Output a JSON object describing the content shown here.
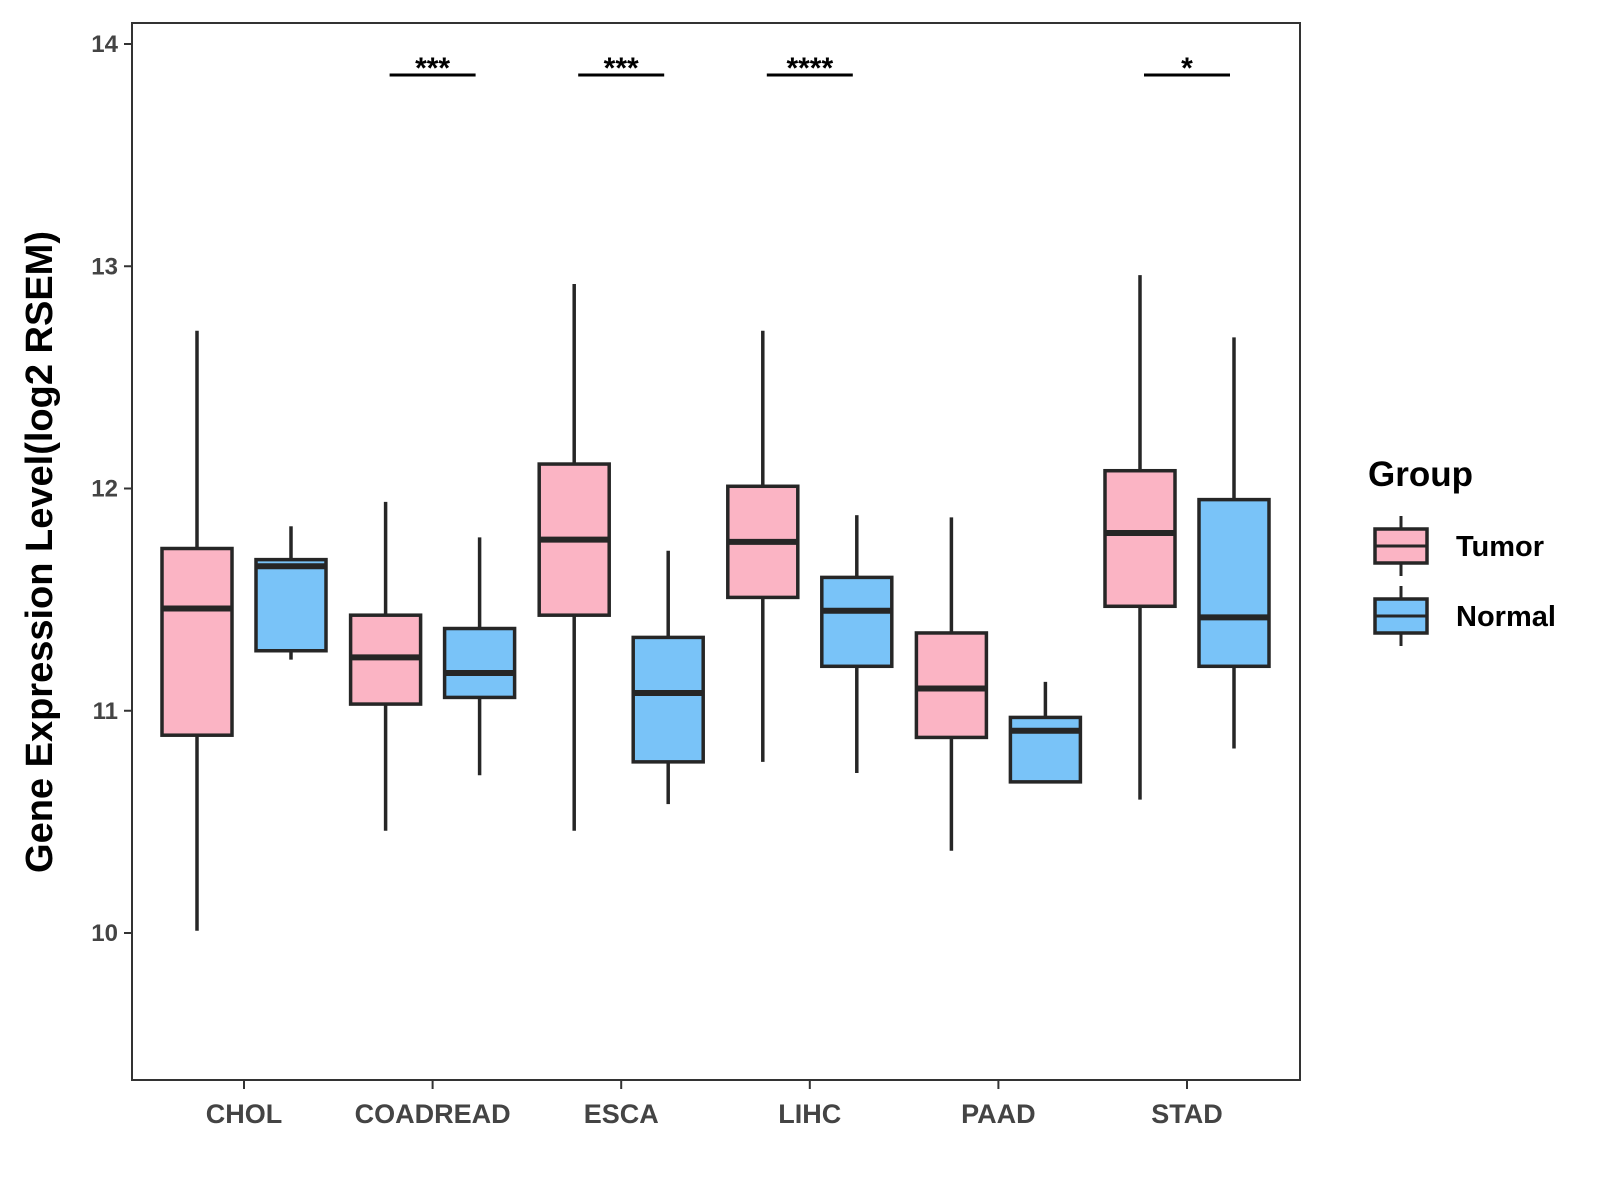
{
  "chart_data": {
    "type": "boxplot",
    "title": "",
    "xlabel": "",
    "ylabel": "Gene Expression Level(log2 RSEM)",
    "ylim": [
      9.4,
      14.1
    ],
    "yticks": [
      10,
      11,
      12,
      13,
      14
    ],
    "categories": [
      "CHOL",
      "COADREAD",
      "ESCA",
      "LIHC",
      "PAAD",
      "STAD"
    ],
    "legend": {
      "title": "Group",
      "position": "right",
      "entries": [
        {
          "name": "Tumor",
          "color": "#fbb4c4"
        },
        {
          "name": "Normal",
          "color": "#79c3f8"
        }
      ]
    },
    "series": [
      {
        "name": "Tumor",
        "color": "#fbb4c4",
        "boxes": [
          {
            "min": 10.01,
            "q1": 10.89,
            "median": 11.46,
            "q3": 11.73,
            "max": 12.71
          },
          {
            "min": 10.46,
            "q1": 11.03,
            "median": 11.24,
            "q3": 11.43,
            "max": 11.94
          },
          {
            "min": 10.46,
            "q1": 11.43,
            "median": 11.77,
            "q3": 12.11,
            "max": 12.92
          },
          {
            "min": 10.77,
            "q1": 11.51,
            "median": 11.76,
            "q3": 12.01,
            "max": 12.71
          },
          {
            "min": 10.37,
            "q1": 10.88,
            "median": 11.1,
            "q3": 11.35,
            "max": 11.87
          },
          {
            "min": 10.6,
            "q1": 11.47,
            "median": 11.8,
            "q3": 12.08,
            "max": 12.96
          }
        ]
      },
      {
        "name": "Normal",
        "color": "#79c3f8",
        "boxes": [
          {
            "min": 11.23,
            "q1": 11.27,
            "median": 11.65,
            "q3": 11.68,
            "max": 11.83
          },
          {
            "min": 10.71,
            "q1": 11.06,
            "median": 11.17,
            "q3": 11.37,
            "max": 11.78
          },
          {
            "min": 10.58,
            "q1": 10.77,
            "median": 11.08,
            "q3": 11.33,
            "max": 11.72
          },
          {
            "min": 10.72,
            "q1": 11.2,
            "median": 11.45,
            "q3": 11.6,
            "max": 11.88
          },
          {
            "min": 10.68,
            "q1": 10.68,
            "median": 10.91,
            "q3": 10.97,
            "max": 11.13
          },
          {
            "min": 10.83,
            "q1": 11.2,
            "median": 11.42,
            "q3": 11.95,
            "max": 12.68
          }
        ]
      }
    ],
    "annotations": [
      {
        "category": "CHOL",
        "label": ""
      },
      {
        "category": "COADREAD",
        "label": "***"
      },
      {
        "category": "ESCA",
        "label": "***"
      },
      {
        "category": "LIHC",
        "label": "****"
      },
      {
        "category": "PAAD",
        "label": ""
      },
      {
        "category": "STAD",
        "label": "*"
      }
    ]
  }
}
